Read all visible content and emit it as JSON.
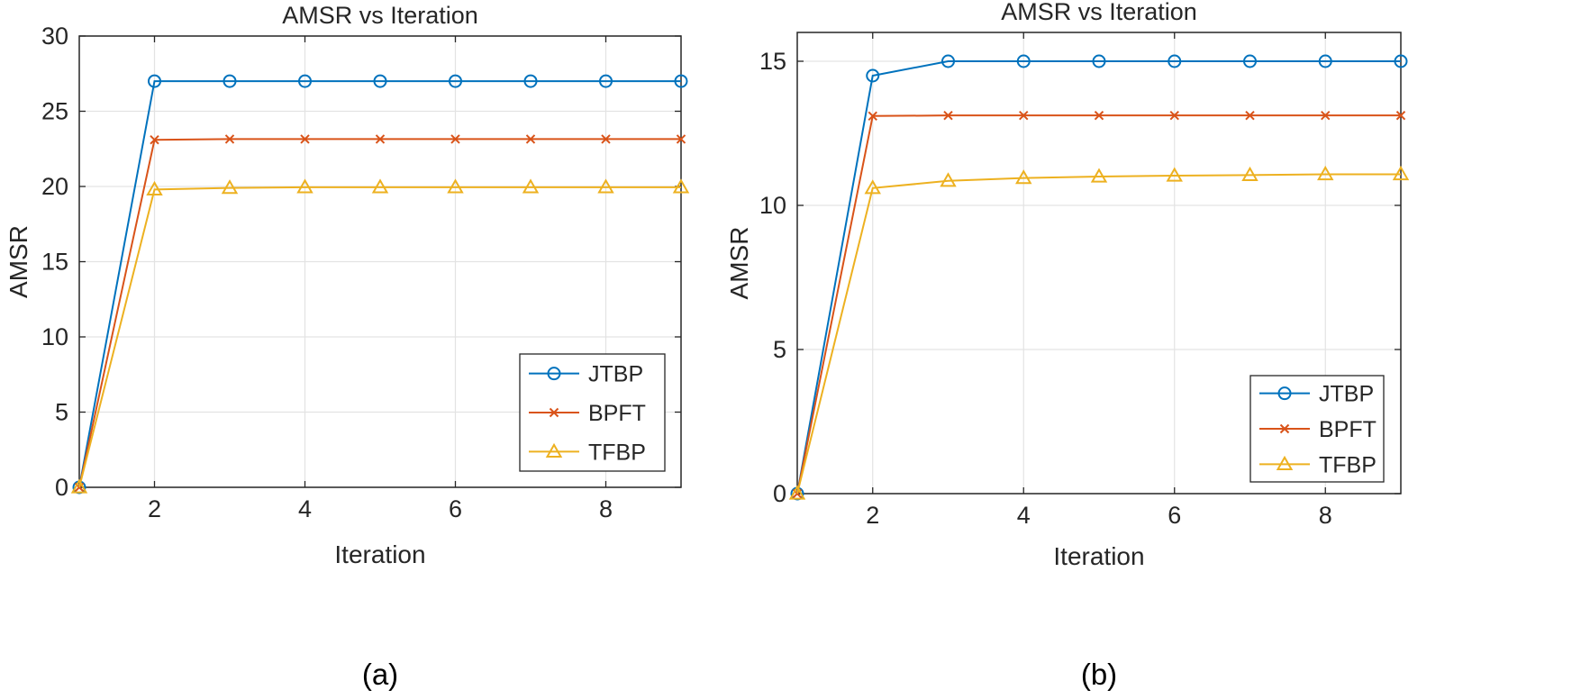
{
  "chart_data": [
    {
      "panel_label": "(a)",
      "type": "line",
      "title": "AMSR vs Iteration",
      "xlabel": "Iteration",
      "ylabel": "AMSR",
      "xlim": [
        1,
        9
      ],
      "ylim": [
        0,
        30
      ],
      "xticks": [
        2,
        4,
        6,
        8
      ],
      "yticks": [
        0,
        5,
        10,
        15,
        20,
        25,
        30
      ],
      "grid": true,
      "legend_position": "bottom-right",
      "x": [
        1,
        2,
        3,
        4,
        5,
        6,
        7,
        8,
        9
      ],
      "series": [
        {
          "name": "JTBP",
          "color": "#0072BD",
          "marker": "circle",
          "values": [
            0,
            27.0,
            27.0,
            27.0,
            27.0,
            27.0,
            27.0,
            27.0,
            27.0
          ]
        },
        {
          "name": "BPFT",
          "color": "#D95319",
          "marker": "x",
          "values": [
            0,
            23.1,
            23.15,
            23.15,
            23.15,
            23.15,
            23.15,
            23.15,
            23.15
          ]
        },
        {
          "name": "TFBP",
          "color": "#EDB120",
          "marker": "triangle",
          "values": [
            0,
            19.8,
            19.9,
            19.95,
            19.95,
            19.95,
            19.95,
            19.95,
            19.95
          ]
        }
      ]
    },
    {
      "panel_label": "(b)",
      "type": "line",
      "title": "AMSR vs Iteration",
      "xlabel": "Iteration",
      "ylabel": "AMSR",
      "xlim": [
        1,
        9
      ],
      "ylim": [
        0,
        16
      ],
      "xticks": [
        2,
        4,
        6,
        8
      ],
      "yticks": [
        0,
        5,
        10,
        15
      ],
      "grid": true,
      "legend_position": "bottom-right",
      "x": [
        1,
        2,
        3,
        4,
        5,
        6,
        7,
        8,
        9
      ],
      "series": [
        {
          "name": "JTBP",
          "color": "#0072BD",
          "marker": "circle",
          "values": [
            0,
            14.5,
            15.0,
            15.0,
            15.0,
            15.0,
            15.0,
            15.0,
            15.0
          ]
        },
        {
          "name": "BPFT",
          "color": "#D95319",
          "marker": "x",
          "values": [
            0,
            13.1,
            13.12,
            13.12,
            13.12,
            13.12,
            13.12,
            13.12,
            13.12
          ]
        },
        {
          "name": "TFBP",
          "color": "#EDB120",
          "marker": "triangle",
          "values": [
            0,
            10.6,
            10.85,
            10.95,
            11.0,
            11.03,
            11.05,
            11.08,
            11.08
          ]
        }
      ]
    }
  ]
}
